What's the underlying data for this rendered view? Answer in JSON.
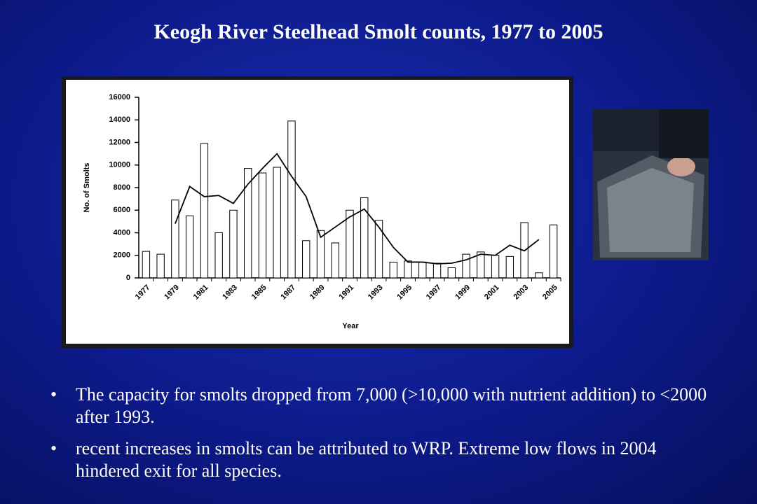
{
  "slide": {
    "title": "Keogh River Steelhead Smolt counts, 1977 to 2005",
    "bullets": [
      "The capacity for smolts dropped from 7,000 (>10,000 with nutrient addition) to <2000 after 1993.",
      "recent increases in smolts can be attributed to WRP. Extreme low flows in 2004 hindered exit for all species."
    ]
  },
  "chart_data": {
    "type": "bar",
    "x_label": "Year",
    "y_label": "No. of Smolts",
    "categories": [
      "1977",
      null,
      "1979",
      null,
      "1981",
      null,
      "1983",
      null,
      "1985",
      null,
      "1987",
      null,
      "1989",
      null,
      "1991",
      null,
      "1993",
      null,
      "1995",
      null,
      "1997",
      null,
      "1999",
      null,
      "2001",
      null,
      "2003",
      null,
      "2005"
    ],
    "series": [
      {
        "type": "bar",
        "color": "#ffffff",
        "values": [
          2350,
          2100,
          6900,
          5500,
          11900,
          4000,
          6000,
          9700,
          9300,
          9800,
          13900,
          3300,
          4200,
          3100,
          6000,
          7100,
          5100,
          1400,
          1500,
          1400,
          1300,
          900,
          2100,
          2300,
          2000,
          1900,
          4900,
          450,
          4700
        ]
      },
      {
        "type": "line",
        "color": "#000000",
        "values": [
          null,
          null,
          4800,
          8100,
          7200,
          7300,
          6600,
          8300,
          9700,
          11000,
          9000,
          7200,
          3600,
          4500,
          5400,
          6100,
          4500,
          2700,
          1400,
          1400,
          1250,
          1300,
          1600,
          2100,
          2000,
          2900,
          2400,
          3400,
          null
        ]
      }
    ],
    "ylim": [
      0,
      16000
    ],
    "yticks": [
      0,
      2000,
      4000,
      6000,
      8000,
      10000,
      12000,
      14000,
      16000
    ]
  }
}
